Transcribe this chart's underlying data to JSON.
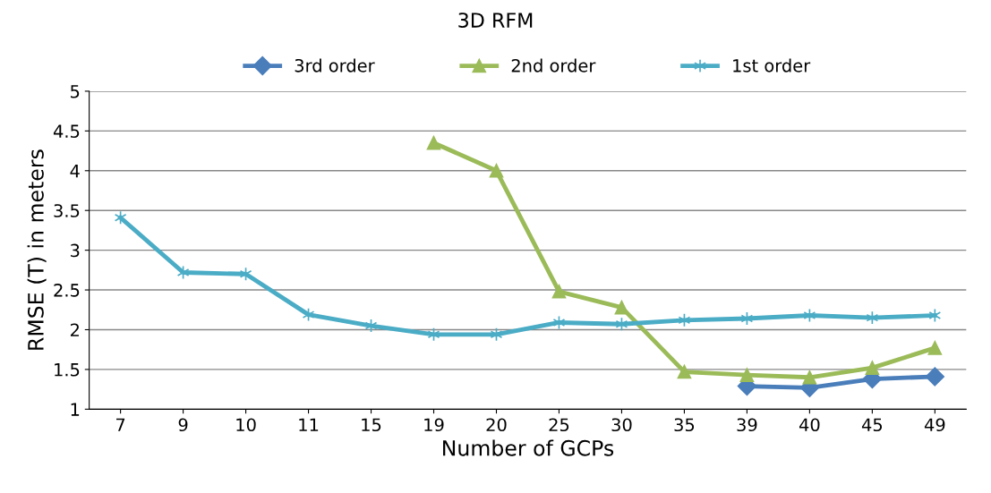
{
  "chart_data": {
    "type": "line",
    "title": "3D RFM",
    "xlabel": "Number of GCPs",
    "ylabel": "RMSE (T) in meters",
    "categories": [
      "7",
      "9",
      "10",
      "11",
      "15",
      "19",
      "20",
      "25",
      "30",
      "35",
      "39",
      "40",
      "45",
      "49"
    ],
    "series": [
      {
        "name": "3rd order",
        "color": "#4a7ebb",
        "marker": "diamond",
        "values": [
          null,
          null,
          null,
          null,
          null,
          null,
          null,
          null,
          null,
          null,
          1.29,
          1.27,
          1.38,
          1.41
        ]
      },
      {
        "name": "2nd order",
        "color": "#9bbb59",
        "marker": "triangle",
        "values": [
          null,
          null,
          null,
          null,
          null,
          4.35,
          4.0,
          2.48,
          2.28,
          1.47,
          1.43,
          1.4,
          1.52,
          1.77
        ]
      },
      {
        "name": "1st order",
        "color": "#4bacc6",
        "marker": "cross",
        "values": [
          3.41,
          2.72,
          2.7,
          2.19,
          2.05,
          1.94,
          1.94,
          2.09,
          2.07,
          2.12,
          2.14,
          2.18,
          2.15,
          2.18
        ]
      }
    ],
    "ylim": [
      1,
      5
    ],
    "yticks": [
      1,
      1.5,
      2,
      2.5,
      3,
      3.5,
      4,
      4.5,
      5
    ],
    "grid": "y",
    "legend": "top",
    "line_style": "solid"
  }
}
